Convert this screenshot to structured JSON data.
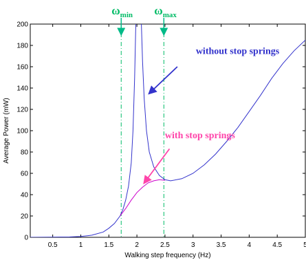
{
  "chart_data": {
    "type": "line",
    "title": "",
    "xlabel": "Walking step frequency (Hz)",
    "ylabel": "Average Power (mW)",
    "xlim": [
      0.1,
      5
    ],
    "ylim": [
      0,
      200
    ],
    "x_ticks": [
      0.5,
      1,
      1.5,
      2,
      2.5,
      3,
      3.5,
      4,
      4.5,
      5
    ],
    "y_ticks": [
      0,
      20,
      40,
      60,
      80,
      100,
      120,
      140,
      160,
      180,
      200
    ],
    "grid": false,
    "series": [
      {
        "name": "without stop springs",
        "color": "#3333cc",
        "points": [
          [
            0.1,
            0
          ],
          [
            0.5,
            0.1
          ],
          [
            0.8,
            0.3
          ],
          [
            1.0,
            0.8
          ],
          [
            1.2,
            2
          ],
          [
            1.4,
            5
          ],
          [
            1.5,
            8.5
          ],
          [
            1.6,
            13
          ],
          [
            1.7,
            20
          ],
          [
            1.75,
            26
          ],
          [
            1.8,
            35
          ],
          [
            1.85,
            48
          ],
          [
            1.9,
            70
          ],
          [
            1.93,
            100
          ],
          [
            1.96,
            150
          ],
          [
            1.98,
            200
          ]
        ]
      },
      {
        "name": "without stop springs",
        "color": "#3333cc",
        "points": [
          [
            2.08,
            200
          ],
          [
            2.1,
            165
          ],
          [
            2.13,
            130
          ],
          [
            2.17,
            100
          ],
          [
            2.22,
            80
          ],
          [
            2.3,
            66
          ],
          [
            2.4,
            58
          ],
          [
            2.5,
            54
          ],
          [
            2.6,
            53
          ],
          [
            2.8,
            55
          ],
          [
            3.0,
            60
          ],
          [
            3.2,
            68
          ],
          [
            3.4,
            78
          ],
          [
            3.6,
            90
          ],
          [
            3.8,
            103
          ],
          [
            4.0,
            118
          ],
          [
            4.2,
            133
          ],
          [
            4.4,
            149
          ],
          [
            4.6,
            163
          ],
          [
            4.8,
            175
          ],
          [
            5.0,
            185
          ]
        ]
      },
      {
        "name": "with stop springs",
        "color": "#cc00cc",
        "points": [
          [
            1.7,
            20
          ],
          [
            1.8,
            27
          ],
          [
            1.9,
            35
          ],
          [
            2.0,
            42
          ],
          [
            2.1,
            47
          ],
          [
            2.2,
            51
          ],
          [
            2.3,
            53
          ],
          [
            2.4,
            54
          ],
          [
            2.5,
            53.5
          ]
        ]
      }
    ],
    "vlines": [
      {
        "x": 1.72,
        "label": "ω",
        "sub": "min",
        "color": "#00bb66"
      },
      {
        "x": 2.48,
        "label": "ω",
        "sub": "max",
        "color": "#00bb66"
      }
    ],
    "annotations": [
      {
        "text": "without stop springs",
        "color": "#3333cc",
        "x": 3.05,
        "y": 172,
        "arrow_from": [
          2.72,
          160
        ],
        "arrow_to": [
          2.22,
          135
        ]
      },
      {
        "text": "with stop springs",
        "color": "#ff44aa",
        "x": 2.5,
        "y": 93,
        "arrow_from": [
          2.58,
          83
        ],
        "arrow_to": [
          2.13,
          51
        ]
      }
    ]
  }
}
